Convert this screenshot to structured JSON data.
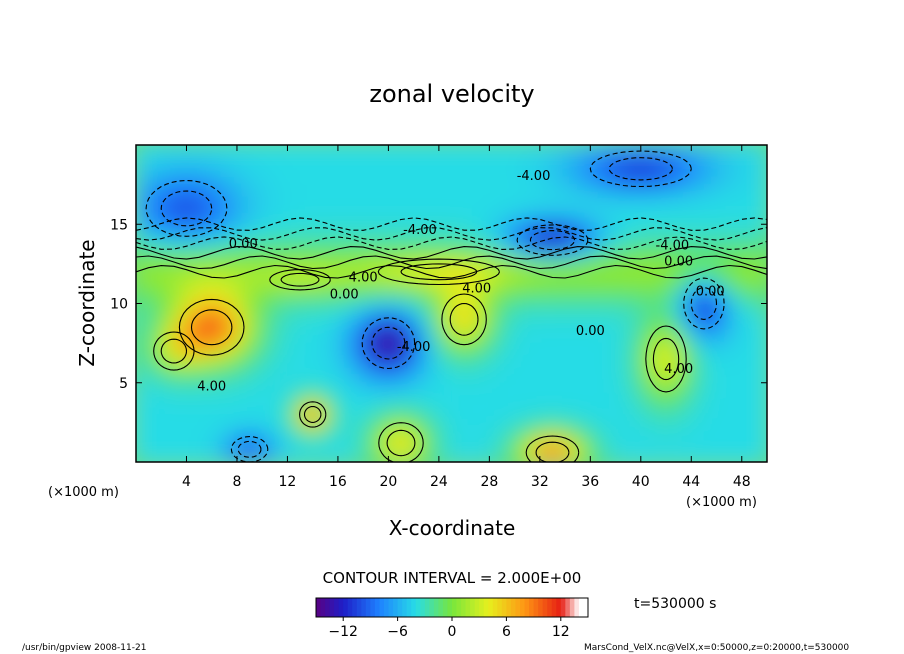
{
  "chart_data": {
    "type": "heatmap",
    "title": "zonal velocity",
    "xlabel": "X-coordinate",
    "ylabel": "Z-coordinate",
    "x_unit": "(×1000 m)",
    "y_unit": "(×1000 m)",
    "x_ticks": [
      4,
      8,
      12,
      16,
      20,
      24,
      28,
      32,
      36,
      40,
      44,
      48
    ],
    "y_ticks": [
      5,
      10,
      15
    ],
    "xlim": [
      0,
      50
    ],
    "ylim": [
      0,
      20
    ],
    "contour_interval_label": "CONTOUR INTERVAL = 2.000E+00",
    "contour_labels": [
      {
        "text": "-4.00",
        "x": 31.5,
        "y": 17.8
      },
      {
        "text": "-4.00",
        "x": 22.5,
        "y": 14.4
      },
      {
        "text": "-4.00",
        "x": 42.5,
        "y": 13.4
      },
      {
        "text": "0.00",
        "x": 8.5,
        "y": 13.5
      },
      {
        "text": "0.00",
        "x": 43.0,
        "y": 12.4
      },
      {
        "text": "4.00",
        "x": 18.0,
        "y": 11.4
      },
      {
        "text": "0.00",
        "x": 16.5,
        "y": 10.3
      },
      {
        "text": "4.00",
        "x": 27.0,
        "y": 10.7
      },
      {
        "text": "0.00",
        "x": 45.5,
        "y": 10.5
      },
      {
        "text": "-4.00",
        "x": 22.0,
        "y": 7.0
      },
      {
        "text": "0.00",
        "x": 36.0,
        "y": 8.0
      },
      {
        "text": "4.00",
        "x": 43.0,
        "y": 5.6
      },
      {
        "text": "4.00",
        "x": 6.0,
        "y": 4.5
      }
    ],
    "grid": false
  },
  "colorbar": {
    "min": -15,
    "max": 15,
    "tick_values": [
      -12,
      -6,
      0,
      6,
      12
    ],
    "tick_labels": [
      "−12",
      "−6",
      "0",
      "6",
      "12"
    ]
  },
  "time_label": "t=530000 s",
  "footer": {
    "left": "/usr/bin/gpview  2008-11-21",
    "right": "MarsCond_VelX.nc@VelX,x=0:50000,z=0:20000,t=530000"
  }
}
